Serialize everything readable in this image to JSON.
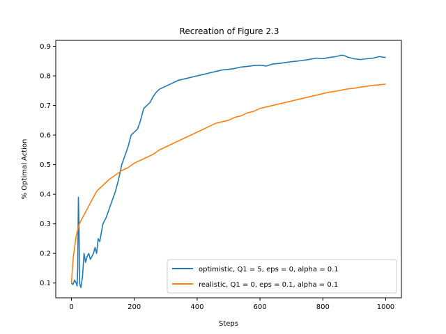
{
  "chart_data": {
    "type": "line",
    "title": "Recreation of Figure 2.3",
    "xlabel": "Steps",
    "ylabel": "% Optimal Action",
    "xlim": [
      -50,
      1050
    ],
    "ylim": [
      0.05,
      0.92
    ],
    "x_ticks": [
      0,
      200,
      400,
      600,
      800,
      1000
    ],
    "x_tick_labels": [
      "0",
      "200",
      "400",
      "600",
      "800",
      "1000"
    ],
    "y_ticks": [
      0.1,
      0.2,
      0.3,
      0.4,
      0.5,
      0.6,
      0.7,
      0.8,
      0.9
    ],
    "y_tick_labels": [
      "0.1",
      "0.2",
      "0.3",
      "0.4",
      "0.5",
      "0.6",
      "0.7",
      "0.8",
      "0.9"
    ],
    "grid": false,
    "legend_position": "lower-right",
    "series": [
      {
        "name": "optimistic, Q1 = 5, eps = 0, alpha = 0.1",
        "color": "#1f77b4",
        "points": [
          [
            0,
            0.1
          ],
          [
            5,
            0.095
          ],
          [
            10,
            0.11
          ],
          [
            15,
            0.1
          ],
          [
            18,
            0.09
          ],
          [
            20,
            0.15
          ],
          [
            22,
            0.39
          ],
          [
            24,
            0.3
          ],
          [
            26,
            0.1
          ],
          [
            28,
            0.09
          ],
          [
            30,
            0.085
          ],
          [
            35,
            0.12
          ],
          [
            40,
            0.2
          ],
          [
            45,
            0.17
          ],
          [
            50,
            0.19
          ],
          [
            55,
            0.2
          ],
          [
            60,
            0.18
          ],
          [
            65,
            0.19
          ],
          [
            70,
            0.2
          ],
          [
            75,
            0.22
          ],
          [
            80,
            0.2
          ],
          [
            85,
            0.25
          ],
          [
            90,
            0.24
          ],
          [
            95,
            0.27
          ],
          [
            100,
            0.3
          ],
          [
            110,
            0.32
          ],
          [
            120,
            0.35
          ],
          [
            130,
            0.38
          ],
          [
            140,
            0.41
          ],
          [
            150,
            0.45
          ],
          [
            160,
            0.5
          ],
          [
            170,
            0.53
          ],
          [
            180,
            0.56
          ],
          [
            190,
            0.6
          ],
          [
            200,
            0.61
          ],
          [
            210,
            0.62
          ],
          [
            220,
            0.65
          ],
          [
            230,
            0.69
          ],
          [
            240,
            0.7
          ],
          [
            250,
            0.71
          ],
          [
            260,
            0.73
          ],
          [
            270,
            0.745
          ],
          [
            280,
            0.755
          ],
          [
            290,
            0.76
          ],
          [
            300,
            0.765
          ],
          [
            320,
            0.775
          ],
          [
            340,
            0.785
          ],
          [
            360,
            0.79
          ],
          [
            380,
            0.795
          ],
          [
            400,
            0.8
          ],
          [
            420,
            0.805
          ],
          [
            440,
            0.81
          ],
          [
            460,
            0.815
          ],
          [
            480,
            0.82
          ],
          [
            500,
            0.822
          ],
          [
            520,
            0.825
          ],
          [
            540,
            0.83
          ],
          [
            560,
            0.832
          ],
          [
            580,
            0.835
          ],
          [
            600,
            0.836
          ],
          [
            620,
            0.833
          ],
          [
            640,
            0.84
          ],
          [
            660,
            0.842
          ],
          [
            680,
            0.845
          ],
          [
            700,
            0.848
          ],
          [
            720,
            0.85
          ],
          [
            740,
            0.853
          ],
          [
            760,
            0.856
          ],
          [
            780,
            0.86
          ],
          [
            800,
            0.858
          ],
          [
            820,
            0.862
          ],
          [
            840,
            0.865
          ],
          [
            860,
            0.87
          ],
          [
            870,
            0.868
          ],
          [
            880,
            0.863
          ],
          [
            900,
            0.858
          ],
          [
            920,
            0.855
          ],
          [
            940,
            0.858
          ],
          [
            960,
            0.86
          ],
          [
            980,
            0.865
          ],
          [
            1000,
            0.862
          ]
        ]
      },
      {
        "name": "realistic, Q1 = 0, eps = 0.1, alpha = 0.1",
        "color": "#ff7f0e",
        "points": [
          [
            0,
            0.1
          ],
          [
            3,
            0.15
          ],
          [
            6,
            0.19
          ],
          [
            10,
            0.22
          ],
          [
            15,
            0.26
          ],
          [
            20,
            0.28
          ],
          [
            25,
            0.3
          ],
          [
            30,
            0.31
          ],
          [
            40,
            0.33
          ],
          [
            50,
            0.35
          ],
          [
            60,
            0.37
          ],
          [
            70,
            0.39
          ],
          [
            80,
            0.41
          ],
          [
            90,
            0.42
          ],
          [
            100,
            0.43
          ],
          [
            120,
            0.45
          ],
          [
            140,
            0.465
          ],
          [
            160,
            0.48
          ],
          [
            180,
            0.49
          ],
          [
            200,
            0.505
          ],
          [
            220,
            0.515
          ],
          [
            240,
            0.525
          ],
          [
            260,
            0.535
          ],
          [
            280,
            0.55
          ],
          [
            300,
            0.56
          ],
          [
            320,
            0.57
          ],
          [
            340,
            0.58
          ],
          [
            360,
            0.59
          ],
          [
            380,
            0.6
          ],
          [
            400,
            0.61
          ],
          [
            420,
            0.62
          ],
          [
            440,
            0.63
          ],
          [
            460,
            0.64
          ],
          [
            480,
            0.645
          ],
          [
            500,
            0.65
          ],
          [
            520,
            0.66
          ],
          [
            540,
            0.665
          ],
          [
            560,
            0.675
          ],
          [
            580,
            0.68
          ],
          [
            600,
            0.69
          ],
          [
            620,
            0.695
          ],
          [
            640,
            0.7
          ],
          [
            660,
            0.705
          ],
          [
            680,
            0.71
          ],
          [
            700,
            0.715
          ],
          [
            720,
            0.72
          ],
          [
            740,
            0.725
          ],
          [
            760,
            0.73
          ],
          [
            780,
            0.735
          ],
          [
            800,
            0.74
          ],
          [
            820,
            0.745
          ],
          [
            840,
            0.748
          ],
          [
            860,
            0.752
          ],
          [
            880,
            0.756
          ],
          [
            900,
            0.758
          ],
          [
            920,
            0.762
          ],
          [
            940,
            0.765
          ],
          [
            960,
            0.768
          ],
          [
            980,
            0.77
          ],
          [
            1000,
            0.772
          ]
        ]
      }
    ]
  }
}
